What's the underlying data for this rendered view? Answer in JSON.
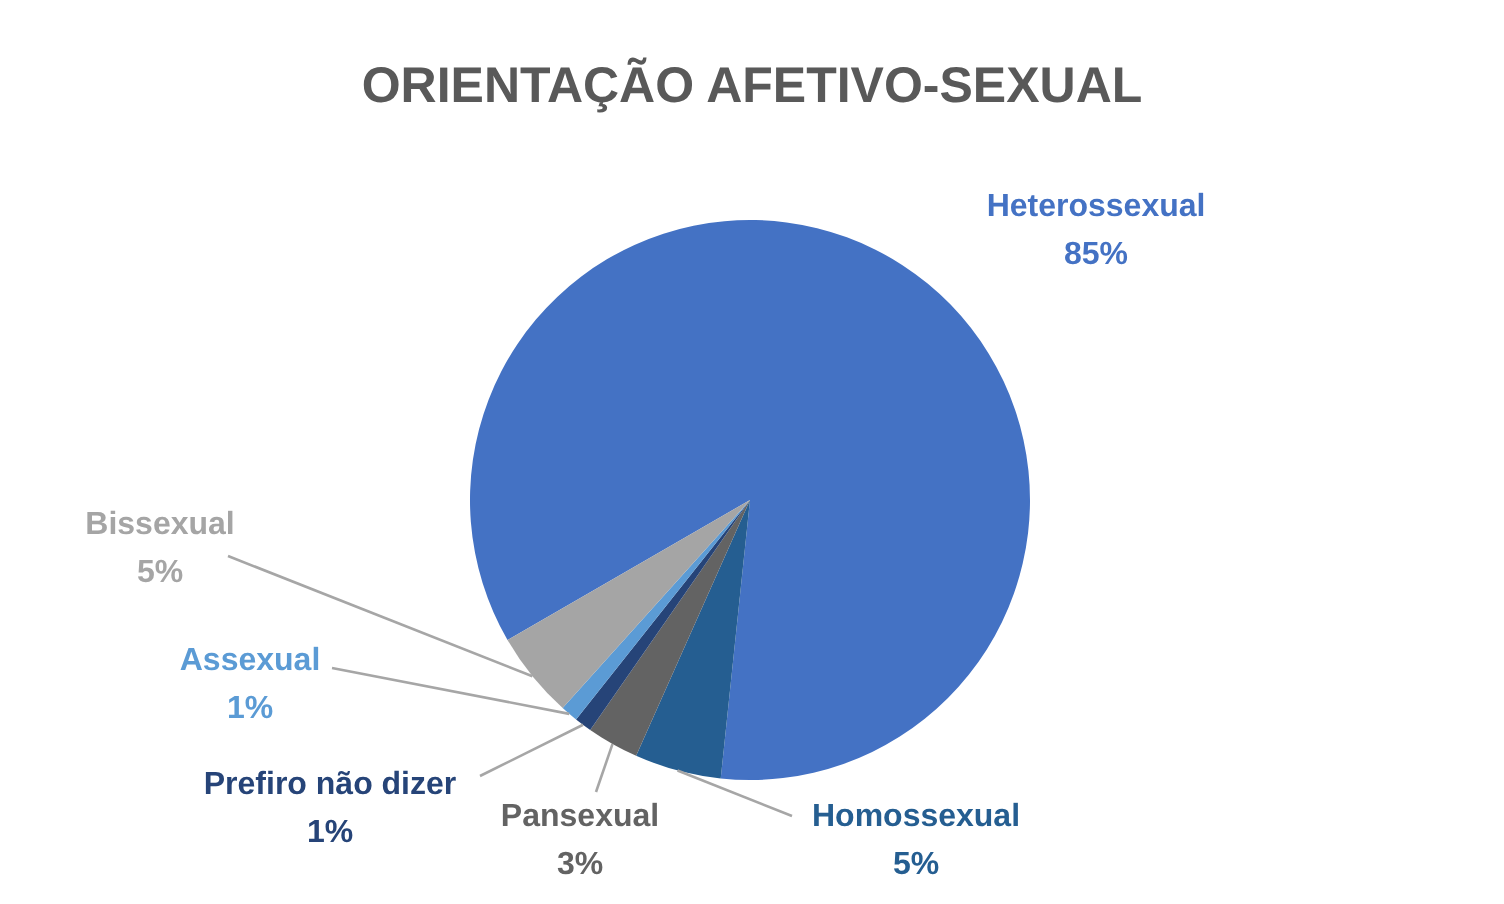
{
  "chart_data": {
    "type": "pie",
    "title": "ORIENTAÇÃO AFETIVO-SEXUAL",
    "categories": [
      "Heterossexual",
      "Homossexual",
      "Pansexual",
      "Prefiro não dizer",
      "Assexual",
      "Bissexual"
    ],
    "values": [
      85,
      5,
      3,
      1,
      1,
      5
    ],
    "value_labels": [
      "85%",
      "5%",
      "3%",
      "1%",
      "1%",
      "5%"
    ],
    "colors": [
      "#4472c4",
      "#255e91",
      "#636363",
      "#264478",
      "#5b9bd5",
      "#a5a5a5"
    ]
  }
}
